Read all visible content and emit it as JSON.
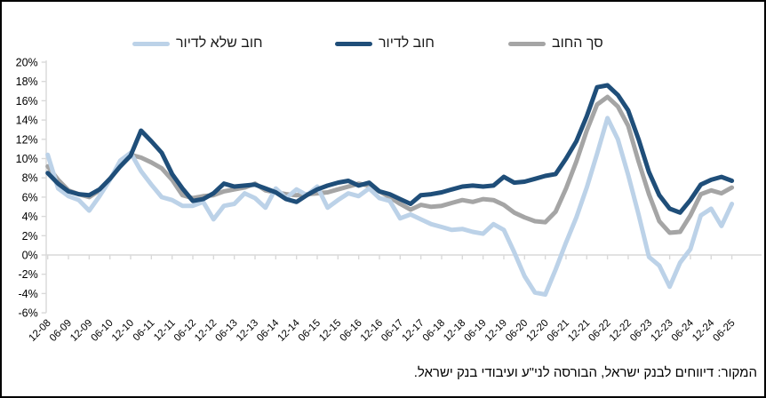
{
  "legend": {
    "items": [
      {
        "key": "non_housing",
        "label": "חוב שלא לדיור",
        "color": "#BCD2E8"
      },
      {
        "key": "housing",
        "label": "חוב לדיור",
        "color": "#1F4E79"
      },
      {
        "key": "total",
        "label": "סך החוב",
        "color": "#A5A5A5"
      }
    ]
  },
  "source_note": "המקור: דיווחים לבנק ישראל, הבורסה לני\"ע ועיבודי בנק ישראל.",
  "chart_data": {
    "type": "line",
    "title": "",
    "xlabel": "",
    "ylabel": "",
    "legend_position": "top",
    "grid": "none",
    "axis_color": "#d9d9d9",
    "tick_label_color": "#000000",
    "y_axis": {
      "min": -6,
      "max": 20,
      "step": 2,
      "tick_labels": [
        "20%",
        "18%",
        "16%",
        "14%",
        "12%",
        "10%",
        "8%",
        "6%",
        "4%",
        "2%",
        "0%",
        "-2%",
        "-4%",
        "-6%"
      ],
      "tick_values": [
        20,
        18,
        16,
        14,
        12,
        10,
        8,
        6,
        4,
        2,
        0,
        -2,
        -4,
        -6
      ]
    },
    "x_tick_labels": [
      "12-08",
      "06-09",
      "12-09",
      "06-10",
      "12-10",
      "06-11",
      "12-11",
      "06-12",
      "12-12",
      "06-13",
      "12-13",
      "06-14",
      "12-14",
      "06-15",
      "12-15",
      "06-16",
      "12-16",
      "06-17",
      "12-17",
      "06-18",
      "12-18",
      "06-19",
      "12-19",
      "06-20",
      "12-20",
      "06-21",
      "12-21",
      "06-22",
      "12-22",
      "06-23",
      "12-23",
      "06-24",
      "12-24",
      "06-25"
    ],
    "points_per_x_tick": 2,
    "frequency": "quarterly",
    "series": [
      {
        "key": "total",
        "name": "סך החוב",
        "color": "#A5A5A5",
        "width": 5,
        "values": [
          9.2,
          7.8,
          6.7,
          6.3,
          6.0,
          6.7,
          7.9,
          9.3,
          10.4,
          10.1,
          9.6,
          9.0,
          7.8,
          6.2,
          5.9,
          6.1,
          6.2,
          6.6,
          6.8,
          7.0,
          7.4,
          6.7,
          6.5,
          6.3,
          6.2,
          6.3,
          6.4,
          6.5,
          6.8,
          7.1,
          7.4,
          7.2,
          6.6,
          6.0,
          5.3,
          4.7,
          5.2,
          5.0,
          5.1,
          5.4,
          5.7,
          5.5,
          5.8,
          5.7,
          5.2,
          4.4,
          3.9,
          3.5,
          3.4,
          4.5,
          6.9,
          9.7,
          12.9,
          15.6,
          16.4,
          15.4,
          13.4,
          9.7,
          6.3,
          3.5,
          2.3,
          2.4,
          4.1,
          6.3,
          6.7,
          6.4,
          7.0
        ]
      },
      {
        "key": "non_housing",
        "name": "חוב שלא לדיור",
        "color": "#BCD2E8",
        "width": 5,
        "values": [
          10.4,
          6.9,
          6.1,
          5.7,
          4.6,
          6.1,
          7.8,
          9.8,
          10.6,
          8.7,
          7.3,
          6.0,
          5.7,
          5.1,
          5.1,
          5.5,
          3.7,
          5.1,
          5.3,
          6.4,
          5.9,
          4.9,
          6.9,
          5.9,
          6.8,
          6.2,
          7.1,
          4.9,
          5.7,
          6.4,
          6.1,
          6.9,
          5.9,
          5.6,
          3.8,
          4.2,
          3.7,
          3.2,
          2.9,
          2.6,
          2.7,
          2.4,
          2.2,
          3.2,
          2.6,
          0.3,
          -2.2,
          -3.9,
          -4.1,
          -1.5,
          1.3,
          3.9,
          7.0,
          10.5,
          14.2,
          12.0,
          8.3,
          4.2,
          -0.2,
          -1.1,
          -3.3,
          -0.8,
          0.6,
          4.1,
          4.8,
          3.0,
          5.3
        ]
      },
      {
        "key": "housing",
        "name": "חוב לדיור",
        "color": "#1F4E79",
        "width": 5,
        "values": [
          8.5,
          7.4,
          6.6,
          6.3,
          6.2,
          6.8,
          7.9,
          9.2,
          10.3,
          12.9,
          11.8,
          10.6,
          8.4,
          6.9,
          5.6,
          5.8,
          6.4,
          7.4,
          7.1,
          7.2,
          7.3,
          6.9,
          6.5,
          5.8,
          5.5,
          6.2,
          6.8,
          7.2,
          7.5,
          7.7,
          7.2,
          7.5,
          6.6,
          6.3,
          5.8,
          5.3,
          6.2,
          6.3,
          6.5,
          6.8,
          7.1,
          7.2,
          7.1,
          7.2,
          8.1,
          7.5,
          7.6,
          7.9,
          8.2,
          8.4,
          10.0,
          11.8,
          14.4,
          17.4,
          17.6,
          16.6,
          15.0,
          12.0,
          8.6,
          6.2,
          4.8,
          4.4,
          5.7,
          7.3,
          7.8,
          8.1,
          7.7
        ]
      }
    ]
  }
}
